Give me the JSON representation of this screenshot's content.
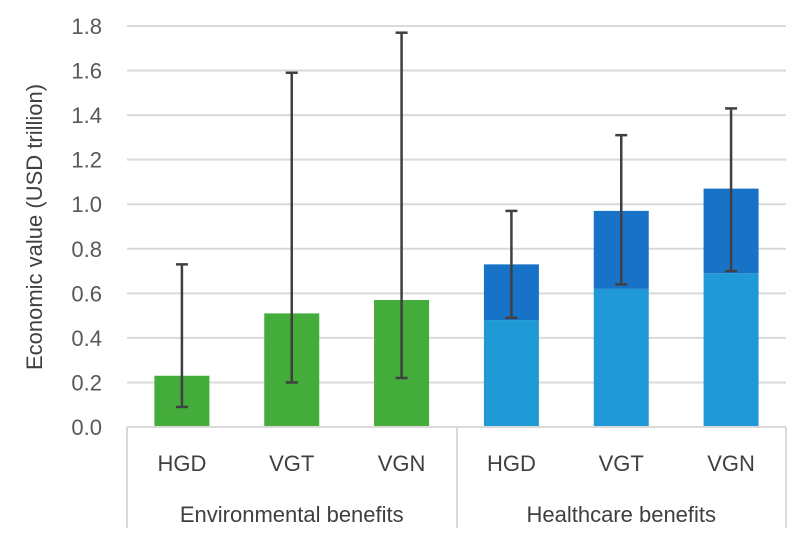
{
  "chart_data": {
    "type": "bar",
    "stacked": true,
    "title": "",
    "xlabel": "",
    "ylabel": "Economic value (USD trillion)",
    "ylim": [
      0,
      1.8
    ],
    "yticks": [
      "0.0",
      "0.2",
      "0.4",
      "0.6",
      "0.8",
      "1.0",
      "1.2",
      "1.4",
      "1.6",
      "1.8"
    ],
    "grid": true,
    "legend": "none",
    "groups": [
      {
        "label": "Environmental benefits",
        "categories": [
          "HGD",
          "VGT",
          "VGN"
        ]
      },
      {
        "label": "Healthcare benefits",
        "categories": [
          "HGD",
          "VGT",
          "VGN"
        ]
      }
    ],
    "categories": [
      "HGD",
      "VGT",
      "VGN",
      "HGD",
      "VGT",
      "VGN"
    ],
    "series": [
      {
        "name": "Environmental benefits",
        "color": "#43ac3a",
        "values": [
          0.23,
          0.51,
          0.57,
          null,
          null,
          null
        ]
      },
      {
        "name": "Healthcare benefits (lower)",
        "color": "#1f9ad7",
        "values": [
          null,
          null,
          null,
          0.48,
          0.62,
          0.69
        ]
      },
      {
        "name": "Healthcare benefits (upper)",
        "color": "#1872c7",
        "values": [
          null,
          null,
          null,
          0.25,
          0.35,
          0.38
        ]
      }
    ],
    "error_bars": [
      {
        "low": 0.09,
        "high": 0.73
      },
      {
        "low": 0.2,
        "high": 1.59
      },
      {
        "low": 0.22,
        "high": 1.77
      },
      {
        "low": 0.49,
        "high": 0.97
      },
      {
        "low": 0.64,
        "high": 1.31
      },
      {
        "low": 0.7,
        "high": 1.43
      }
    ]
  }
}
